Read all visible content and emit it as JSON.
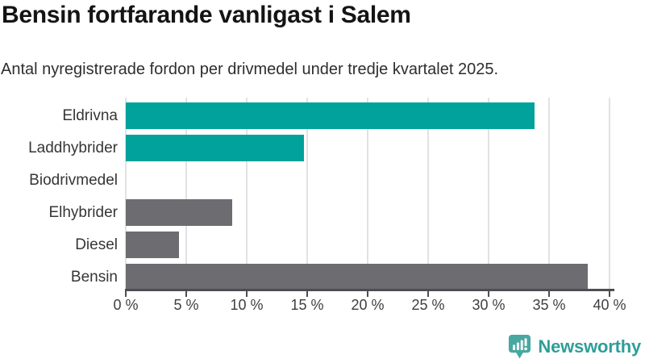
{
  "title": "Bensin fortfarande vanligast i Salem",
  "subtitle": "Antal nyregistrerade fordon per drivmedel under tredje kvartalet 2025.",
  "branding": {
    "logo_text": "Newsworthy",
    "logo_icon": "bar-chart-speech-bubble-icon"
  },
  "colors": {
    "highlight_bar": "#00a29b",
    "default_bar": "#6c6c71",
    "gridline": "#e2e2e2",
    "axis": "#4d4d52",
    "title_text": "#141414",
    "subtitle_text": "#2e2e2e",
    "category_text": "#363636",
    "tick_text": "#3e3e42",
    "logo": "#2f9e98"
  },
  "chart_data": {
    "type": "bar",
    "orientation": "horizontal",
    "title": "Bensin fortfarande vanligast i Salem",
    "subtitle": "Antal nyregistrerade fordon per drivmedel under tredje kvartalet 2025.",
    "categories": [
      "Eldrivna",
      "Laddhybrider",
      "Biodrivmedel",
      "Elhybrider",
      "Diesel",
      "Bensin"
    ],
    "values": [
      33.8,
      14.7,
      0,
      8.8,
      4.4,
      38.2
    ],
    "bar_colors": [
      "#00a29b",
      "#00a29b",
      "#00a29b",
      "#6c6c71",
      "#6c6c71",
      "#6c6c71"
    ],
    "unit": "%",
    "xlim": [
      0,
      40
    ],
    "x_ticks": [
      0,
      5,
      10,
      15,
      20,
      25,
      30,
      35,
      40
    ],
    "x_tick_labels": [
      "0 %",
      "5 %",
      "10 %",
      "15 %",
      "20 %",
      "25 %",
      "30 %",
      "35 %",
      "40 %"
    ],
    "grid": true,
    "legend": false,
    "xlabel": "",
    "ylabel": ""
  }
}
